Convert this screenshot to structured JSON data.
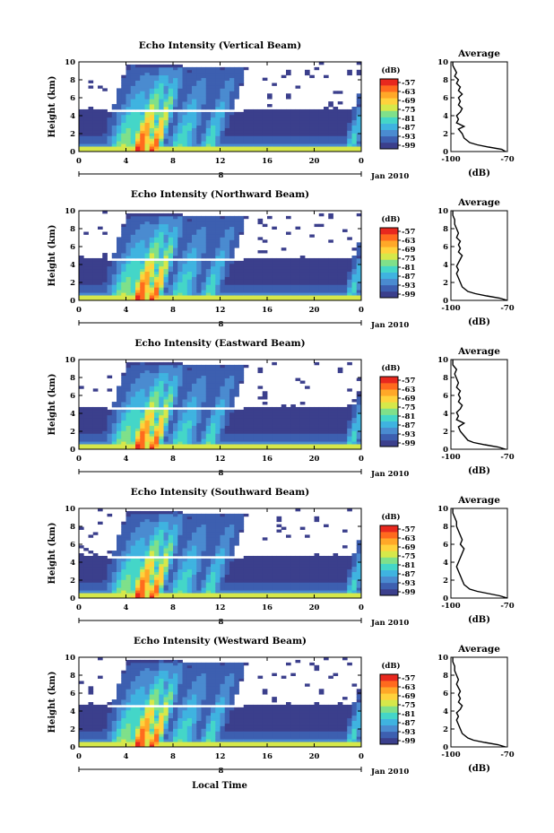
{
  "figure": {
    "xlabel": "Local Time"
  },
  "colors": [
    "#3b3f8c",
    "#3d5fb0",
    "#4a8bd0",
    "#3fb3e0",
    "#44d6c8",
    "#7fe08a",
    "#d6e84a",
    "#ffd23c",
    "#ffa828",
    "#ff6a1e",
    "#e8281e"
  ],
  "chart_data": [
    {
      "type": "heatmap",
      "title": "Echo Intensity (Vertical Beam)",
      "ylabel": "Height (km)",
      "ylim": [
        0,
        10
      ],
      "yticks": [
        "0",
        "2",
        "4",
        "6",
        "8",
        "10"
      ],
      "xlim": [
        0,
        24
      ],
      "xticks": [
        "0",
        "4",
        "8",
        "12",
        "16",
        "20",
        "0"
      ],
      "date_row": {
        "tick": "8",
        "label": "Jan 2010"
      },
      "colorbar": {
        "unit": "(dB)",
        "levels": [
          "-57",
          "-63",
          "-69",
          "-75",
          "-81",
          "-87",
          "-93",
          "-99"
        ]
      },
      "average": {
        "title": "Average",
        "xlabel": "(dB)",
        "xlim": [
          -100,
          -70
        ],
        "xticks": [
          "-100",
          "-70"
        ],
        "ylim": [
          0,
          10
        ],
        "yticks": [
          "0",
          "2",
          "4",
          "6",
          "8",
          "10"
        ],
        "profile": [
          [
            0.0,
            -71
          ],
          [
            0.25,
            -73
          ],
          [
            0.5,
            -80
          ],
          [
            0.75,
            -86
          ],
          [
            1.0,
            -90
          ],
          [
            1.5,
            -93
          ],
          [
            2.0,
            -94
          ],
          [
            2.5,
            -96
          ],
          [
            2.8,
            -93
          ],
          [
            3.2,
            -97
          ],
          [
            3.6,
            -96
          ],
          [
            4.0,
            -97
          ],
          [
            4.4,
            -95
          ],
          [
            4.8,
            -94
          ],
          [
            5.2,
            -96
          ],
          [
            5.6,
            -95
          ],
          [
            6.0,
            -96
          ],
          [
            6.4,
            -94
          ],
          [
            6.8,
            -96
          ],
          [
            7.2,
            -95
          ],
          [
            7.6,
            -97
          ],
          [
            8.0,
            -96
          ],
          [
            8.4,
            -98
          ],
          [
            8.8,
            -97
          ],
          [
            9.2,
            -98
          ],
          [
            9.6,
            -99
          ],
          [
            10.0,
            -99
          ]
        ]
      }
    },
    {
      "type": "heatmap",
      "title": "Echo Intensity (Northward Beam)",
      "ylabel": "Height (km)",
      "ylim": [
        0,
        10
      ],
      "yticks": [
        "0",
        "2",
        "4",
        "6",
        "8",
        "10"
      ],
      "xlim": [
        0,
        24
      ],
      "xticks": [
        "0",
        "4",
        "8",
        "12",
        "16",
        "20",
        "0"
      ],
      "date_row": {
        "tick": "8",
        "label": "Jan 2010"
      },
      "colorbar": {
        "unit": "(dB)",
        "levels": [
          "-57",
          "-63",
          "-69",
          "-75",
          "-81",
          "-87",
          "-93",
          "-99"
        ]
      },
      "average": {
        "title": "Average",
        "xlabel": "(dB)",
        "xlim": [
          -100,
          -70
        ],
        "xticks": [
          "-100",
          "-70"
        ],
        "ylim": [
          0,
          10
        ],
        "yticks": [
          "0",
          "2",
          "4",
          "6",
          "8",
          "10"
        ],
        "profile": [
          [
            0.0,
            -70
          ],
          [
            0.25,
            -74
          ],
          [
            0.5,
            -81
          ],
          [
            0.75,
            -87
          ],
          [
            1.0,
            -91
          ],
          [
            1.5,
            -94
          ],
          [
            2.0,
            -95
          ],
          [
            2.5,
            -96
          ],
          [
            3.0,
            -97
          ],
          [
            3.4,
            -96
          ],
          [
            3.8,
            -97
          ],
          [
            4.2,
            -96
          ],
          [
            4.6,
            -95
          ],
          [
            5.0,
            -94
          ],
          [
            5.4,
            -96
          ],
          [
            5.8,
            -95
          ],
          [
            6.2,
            -96
          ],
          [
            6.6,
            -95
          ],
          [
            7.0,
            -97
          ],
          [
            7.5,
            -96
          ],
          [
            8.0,
            -97
          ],
          [
            8.5,
            -98
          ],
          [
            9.0,
            -98
          ],
          [
            9.5,
            -99
          ],
          [
            10.0,
            -99
          ]
        ]
      }
    },
    {
      "type": "heatmap",
      "title": "Echo Intensity (Eastward Beam)",
      "ylabel": "Height (km)",
      "ylim": [
        0,
        10
      ],
      "yticks": [
        "0",
        "2",
        "4",
        "6",
        "8",
        "10"
      ],
      "xlim": [
        0,
        24
      ],
      "xticks": [
        "0",
        "4",
        "8",
        "12",
        "16",
        "20",
        "0"
      ],
      "date_row": {
        "tick": "8",
        "label": "Jan 2010"
      },
      "colorbar": {
        "unit": "(dB)",
        "levels": [
          "-57",
          "-63",
          "-69",
          "-75",
          "-81",
          "-87",
          "-93",
          "-99"
        ]
      },
      "average": {
        "title": "Average",
        "xlabel": "(dB)",
        "xlim": [
          -100,
          -70
        ],
        "xticks": [
          "-100",
          "-70"
        ],
        "ylim": [
          0,
          10
        ],
        "yticks": [
          "0",
          "2",
          "4",
          "6",
          "8",
          "10"
        ],
        "profile": [
          [
            0.0,
            -71
          ],
          [
            0.25,
            -75
          ],
          [
            0.5,
            -82
          ],
          [
            0.75,
            -88
          ],
          [
            1.0,
            -91
          ],
          [
            1.5,
            -93
          ],
          [
            2.0,
            -95
          ],
          [
            2.5,
            -96
          ],
          [
            2.9,
            -93
          ],
          [
            3.3,
            -97
          ],
          [
            3.7,
            -96
          ],
          [
            4.1,
            -97
          ],
          [
            4.5,
            -95
          ],
          [
            4.9,
            -94
          ],
          [
            5.3,
            -96
          ],
          [
            5.7,
            -95
          ],
          [
            6.1,
            -96
          ],
          [
            6.5,
            -95
          ],
          [
            6.9,
            -97
          ],
          [
            7.4,
            -96
          ],
          [
            7.9,
            -97
          ],
          [
            8.4,
            -98
          ],
          [
            8.9,
            -97
          ],
          [
            9.4,
            -99
          ],
          [
            10.0,
            -99
          ]
        ]
      }
    },
    {
      "type": "heatmap",
      "title": "Echo Intensity (Southward Beam)",
      "ylabel": "Height (km)",
      "ylim": [
        0,
        10
      ],
      "yticks": [
        "0",
        "2",
        "4",
        "6",
        "8",
        "10"
      ],
      "xlim": [
        0,
        24
      ],
      "xticks": [
        "0",
        "4",
        "8",
        "12",
        "16",
        "20",
        "0"
      ],
      "date_row": {
        "tick": "8",
        "label": "Jan 2010"
      },
      "colorbar": {
        "unit": "(dB)",
        "levels": [
          "-57",
          "-63",
          "-69",
          "-75",
          "-81",
          "-87",
          "-93",
          "-99"
        ]
      },
      "average": {
        "title": "Average",
        "xlabel": "(dB)",
        "xlim": [
          -100,
          -70
        ],
        "xticks": [
          "-100",
          "-70"
        ],
        "ylim": [
          0,
          10
        ],
        "yticks": [
          "0",
          "2",
          "4",
          "6",
          "8",
          "10"
        ],
        "profile": [
          [
            0.0,
            -70
          ],
          [
            0.25,
            -74
          ],
          [
            0.5,
            -80
          ],
          [
            0.75,
            -86
          ],
          [
            1.0,
            -90
          ],
          [
            1.5,
            -93
          ],
          [
            2.0,
            -94
          ],
          [
            2.5,
            -95
          ],
          [
            3.0,
            -96
          ],
          [
            3.5,
            -97
          ],
          [
            4.0,
            -96
          ],
          [
            4.5,
            -95
          ],
          [
            5.0,
            -94
          ],
          [
            5.5,
            -93
          ],
          [
            6.0,
            -95
          ],
          [
            6.5,
            -94
          ],
          [
            7.0,
            -95
          ],
          [
            7.5,
            -96
          ],
          [
            8.0,
            -97
          ],
          [
            8.5,
            -97
          ],
          [
            9.0,
            -98
          ],
          [
            9.5,
            -99
          ],
          [
            10.0,
            -99
          ]
        ]
      }
    },
    {
      "type": "heatmap",
      "title": "Echo Intensity (Westward Beam)",
      "ylabel": "Height (km)",
      "ylim": [
        0,
        10
      ],
      "yticks": [
        "0",
        "2",
        "4",
        "6",
        "8",
        "10"
      ],
      "xlim": [
        0,
        24
      ],
      "xticks": [
        "0",
        "4",
        "8",
        "12",
        "16",
        "20",
        "0"
      ],
      "date_row": {
        "tick": "8",
        "label": "Jan 2010"
      },
      "colorbar": {
        "unit": "(dB)",
        "levels": [
          "-57",
          "-63",
          "-69",
          "-75",
          "-81",
          "-87",
          "-93",
          "-99"
        ]
      },
      "average": {
        "title": "Average",
        "xlabel": "(dB)",
        "xlim": [
          -100,
          -70
        ],
        "xticks": [
          "-100",
          "-70"
        ],
        "ylim": [
          0,
          10
        ],
        "yticks": [
          "0",
          "2",
          "4",
          "6",
          "8",
          "10"
        ],
        "profile": [
          [
            0.0,
            -71
          ],
          [
            0.25,
            -75
          ],
          [
            0.5,
            -82
          ],
          [
            0.75,
            -88
          ],
          [
            1.0,
            -91
          ],
          [
            1.5,
            -94
          ],
          [
            2.0,
            -95
          ],
          [
            2.5,
            -96
          ],
          [
            3.0,
            -97
          ],
          [
            3.4,
            -96
          ],
          [
            3.8,
            -97
          ],
          [
            4.2,
            -95
          ],
          [
            4.6,
            -94
          ],
          [
            5.0,
            -96
          ],
          [
            5.4,
            -95
          ],
          [
            5.8,
            -96
          ],
          [
            6.2,
            -95
          ],
          [
            6.6,
            -96
          ],
          [
            7.0,
            -97
          ],
          [
            7.5,
            -96
          ],
          [
            8.0,
            -97
          ],
          [
            8.5,
            -98
          ],
          [
            9.0,
            -98
          ],
          [
            9.5,
            -99
          ],
          [
            10.0,
            -99
          ]
        ]
      }
    }
  ]
}
